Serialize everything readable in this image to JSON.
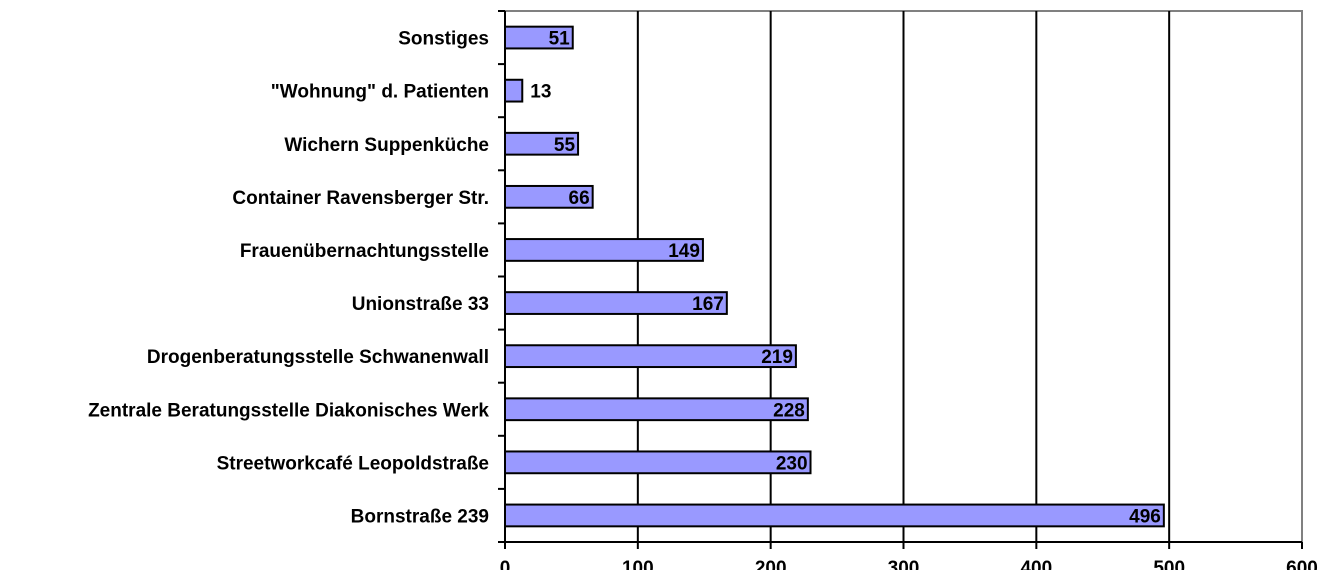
{
  "chart_data": {
    "type": "bar",
    "orientation": "horizontal",
    "title": "",
    "xlabel": "",
    "ylabel": "",
    "xlim": [
      0,
      600
    ],
    "x_ticks": [
      0,
      100,
      200,
      300,
      400,
      500,
      600
    ],
    "grid": "vertical",
    "legend": "none",
    "bar_color": "#9999ff",
    "bar_outline_color": "#000000",
    "categories": [
      "Sonstiges",
      "\"Wohnung\" d. Patienten",
      "Wichern Suppenküche",
      "Container Ravensberger Str.",
      "Frauenübernachtungsstelle",
      "Unionstraße 33",
      "Drogenberatungsstelle Schwanenwall",
      "Zentrale Beratungsstelle Diakonisches Werk",
      "Streetworkcafé Leopoldstraße",
      "Bornstraße 239"
    ],
    "values": [
      51,
      13,
      55,
      66,
      149,
      167,
      219,
      228,
      230,
      496
    ],
    "data_labels": [
      "51",
      "13",
      "55",
      "66",
      "149",
      "167",
      "219",
      "228",
      "230",
      "496"
    ]
  }
}
